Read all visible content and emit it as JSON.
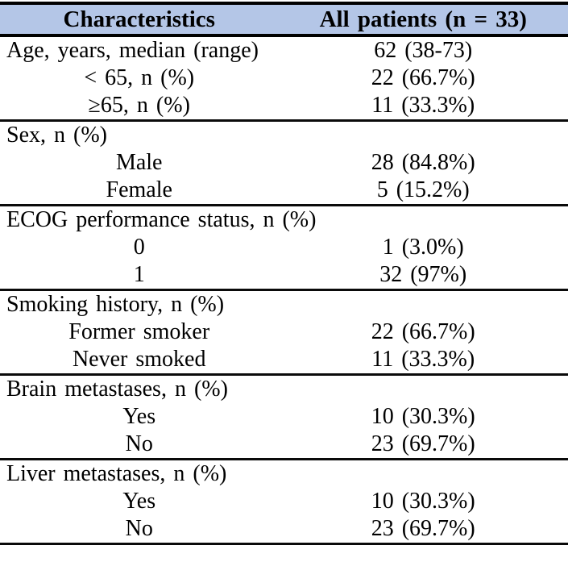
{
  "table": {
    "header_bg": "#b4c6e7",
    "columns": [
      "Characteristics",
      "All patients (n = 33)"
    ],
    "rows": [
      {
        "label": "Age, years, median (range)",
        "value": "62 (38-73)",
        "type": "category",
        "divider_after": false
      },
      {
        "label": "< 65, n (%)",
        "value": "22 (66.7%)",
        "type": "sub",
        "divider_after": false
      },
      {
        "label": "≥65, n (%)",
        "value": "11 (33.3%)",
        "type": "sub",
        "divider_after": true
      },
      {
        "label": "Sex, n (%)",
        "value": "",
        "type": "category",
        "divider_after": false
      },
      {
        "label": "Male",
        "value": "28 (84.8%)",
        "type": "sub",
        "divider_after": false
      },
      {
        "label": "Female",
        "value": "5 (15.2%)",
        "type": "sub",
        "divider_after": true
      },
      {
        "label": "ECOG performance status, n (%)",
        "value": "",
        "type": "category",
        "divider_after": false
      },
      {
        "label": "0",
        "value": "1 (3.0%)",
        "type": "sub",
        "divider_after": false
      },
      {
        "label": "1",
        "value": "32 (97%)",
        "type": "sub",
        "divider_after": true
      },
      {
        "label": "Smoking history, n (%)",
        "value": "",
        "type": "category",
        "divider_after": false
      },
      {
        "label": "Former smoker",
        "value": "22 (66.7%)",
        "type": "sub",
        "divider_after": false
      },
      {
        "label": "Never smoked",
        "value": "11 (33.3%)",
        "type": "sub",
        "divider_after": true
      },
      {
        "label": "Brain metastases, n (%)",
        "value": "",
        "type": "category",
        "divider_after": false
      },
      {
        "label": "Yes",
        "value": "10 (30.3%)",
        "type": "sub",
        "divider_after": false
      },
      {
        "label": "No",
        "value": "23 (69.7%)",
        "type": "sub",
        "divider_after": true
      },
      {
        "label": "Liver metastases, n (%)",
        "value": "",
        "type": "category",
        "divider_after": false
      },
      {
        "label": "Yes",
        "value": "10 (30.3%)",
        "type": "sub",
        "divider_after": false
      },
      {
        "label": "No",
        "value": "23 (69.7%)",
        "type": "sub",
        "divider_after": false
      }
    ]
  }
}
